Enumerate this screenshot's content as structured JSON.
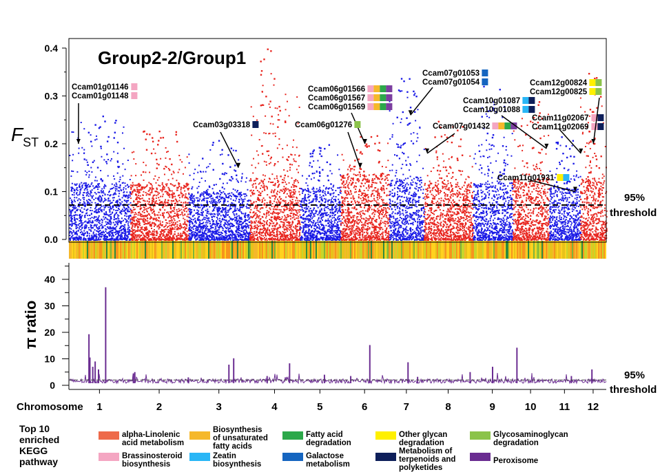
{
  "chart_data": [
    {
      "type": "manhattan",
      "title": "Group2-2/Group1",
      "ylabel": "F",
      "ylabel_sub": "ST",
      "ylim": [
        0,
        0.42
      ],
      "yticks": [
        "0.0",
        "0.1",
        "0.2",
        "0.3",
        "0.4"
      ],
      "ytick_values": [
        0,
        0.1,
        0.2,
        0.3,
        0.4
      ],
      "threshold_value": 0.072,
      "threshold_label_1": "95%",
      "threshold_label_2": "threshold",
      "chromosomes": [
        {
          "name": "1",
          "start": 0,
          "end": 1.28,
          "peak": 0.28,
          "base": 0.12
        },
        {
          "name": "2",
          "start": 1.28,
          "end": 2.5,
          "peak": 0.23,
          "base": 0.12
        },
        {
          "name": "3",
          "start": 2.5,
          "end": 3.78,
          "peak": 0.21,
          "base": 0.1
        },
        {
          "name": "4",
          "start": 3.78,
          "end": 4.83,
          "peak": 0.4,
          "base": 0.13
        },
        {
          "name": "5",
          "start": 4.83,
          "end": 5.68,
          "peak": 0.2,
          "base": 0.11
        },
        {
          "name": "6",
          "start": 5.68,
          "end": 6.7,
          "peak": 0.22,
          "base": 0.14
        },
        {
          "name": "7",
          "start": 6.7,
          "end": 7.43,
          "peak": 0.35,
          "base": 0.13
        },
        {
          "name": "8",
          "start": 7.43,
          "end": 8.45,
          "peak": 0.25,
          "base": 0.12
        },
        {
          "name": "9",
          "start": 8.45,
          "end": 9.28,
          "peak": 0.34,
          "base": 0.12
        },
        {
          "name": "10",
          "start": 9.28,
          "end": 10.05,
          "peak": 0.29,
          "base": 0.13
        },
        {
          "name": "11",
          "start": 10.05,
          "end": 10.7,
          "peak": 0.22,
          "base": 0.11
        },
        {
          "name": "12",
          "start": 10.7,
          "end": 11.25,
          "peak": 0.36,
          "base": 0.13
        }
      ],
      "annotations": [
        {
          "lines": [
            "Ccam01g01146",
            "Ccam01g01148"
          ],
          "colors": [
            [
              "#F4A6C2"
            ],
            [
              "#F4A6C2"
            ]
          ],
          "target": [
            0.2,
            0.2
          ]
        },
        {
          "lines": [
            "Ccam03g03318"
          ],
          "colors": [
            [
              "#0E1F5A"
            ]
          ],
          "target": [
            3.55,
            0.15
          ]
        },
        {
          "lines": [
            "Ccam06g01566",
            "Ccam06g01567",
            "Ccam06g01569"
          ],
          "colors": [
            [
              "#F4A6C2",
              "#F5B82B",
              "#2CA84A",
              "#7C3FA0"
            ],
            [
              "#F4A6C2",
              "#F5B82B",
              "#2CA84A",
              "#7C3FA0"
            ],
            [
              "#F4A6C2",
              "#F5B82B",
              "#2CA84A",
              "#7C3FA0"
            ]
          ],
          "target": [
            6.2,
            0.2
          ]
        },
        {
          "lines": [
            "Ccam06g01276"
          ],
          "colors": [
            [
              "#8BC34A"
            ]
          ],
          "target": [
            6.1,
            0.15
          ]
        },
        {
          "lines": [
            "Ccam07g01053",
            "Ccam07g01054"
          ],
          "colors": [
            [
              "#1565C0"
            ],
            [
              "#1565C0"
            ]
          ],
          "target": [
            7.15,
            0.26
          ]
        },
        {
          "lines": [
            "Ccam07g01432"
          ],
          "colors": [
            [
              "#F4A6C2",
              "#F5B82B",
              "#2CA84A",
              "#7C3FA0"
            ]
          ],
          "target": [
            7.5,
            0.18
          ]
        },
        {
          "lines": [
            "Ccam10g01087",
            "Ccam10g01088"
          ],
          "colors": [
            [
              "#29B6F6",
              "#0E1F5A"
            ],
            [
              "#29B6F6",
              "#0E1F5A"
            ]
          ],
          "target": [
            10.0,
            0.19
          ]
        },
        {
          "lines": [
            "Ccam11g01931"
          ],
          "colors": [
            [
              "#FFF000",
              "#29B6F6"
            ]
          ],
          "target": [
            10.6,
            0.1
          ]
        },
        {
          "lines": [
            "Ccam11g02067",
            "Ccam11g02069"
          ],
          "colors": [
            [
              "#F4A6C2",
              "#0E1F5A"
            ],
            [
              "#F4A6C2",
              "#0E1F5A"
            ]
          ],
          "target": [
            10.72,
            0.18
          ]
        },
        {
          "lines": [
            "Ccam12g00824",
            "Ccam12g00825"
          ],
          "colors": [
            [
              "#FFF000",
              "#8BC34A"
            ],
            [
              "#FFF000",
              "#8BC34A"
            ]
          ],
          "target": [
            10.98,
            0.2
          ]
        }
      ]
    },
    {
      "type": "line",
      "ylabel": "π ratio",
      "ylim": [
        0,
        45
      ],
      "yticks": [
        "0",
        "10",
        "20",
        "30",
        "40"
      ],
      "ytick_values": [
        0,
        10,
        20,
        30,
        40
      ],
      "threshold_value": 2.0,
      "threshold_label_1": "95%",
      "threshold_label_2": "threshold",
      "xlabel": "Chromosome",
      "xticks": [
        "1",
        "2",
        "3",
        "4",
        "5",
        "6",
        "7",
        "8",
        "9",
        "10",
        "11",
        "12"
      ],
      "spikes": [
        {
          "x": 0.42,
          "y": 19.3
        },
        {
          "x": 0.44,
          "y": 10.5
        },
        {
          "x": 0.5,
          "y": 7.0
        },
        {
          "x": 0.55,
          "y": 9.0
        },
        {
          "x": 0.62,
          "y": 6.0
        },
        {
          "x": 0.77,
          "y": 37.0
        },
        {
          "x": 1.35,
          "y": 4.5
        },
        {
          "x": 1.38,
          "y": 5.0
        },
        {
          "x": 3.35,
          "y": 7.8
        },
        {
          "x": 3.45,
          "y": 10.2
        },
        {
          "x": 4.15,
          "y": 3.5
        },
        {
          "x": 4.62,
          "y": 8.3
        },
        {
          "x": 5.35,
          "y": 4.0
        },
        {
          "x": 6.3,
          "y": 15.2
        },
        {
          "x": 7.1,
          "y": 8.7
        },
        {
          "x": 7.3,
          "y": 3.2
        },
        {
          "x": 8.4,
          "y": 5.0
        },
        {
          "x": 8.87,
          "y": 7.0
        },
        {
          "x": 9.38,
          "y": 14.2
        },
        {
          "x": 10.52,
          "y": 3.5
        },
        {
          "x": 10.95,
          "y": 6.0
        },
        {
          "x": 2.5,
          "y": 3.0
        },
        {
          "x": 5.9,
          "y": 3.5
        }
      ],
      "line_color": "#6A2C91"
    }
  ],
  "legend": {
    "title_lines": [
      "Top 10",
      "enriched",
      "KEGG",
      "pathway"
    ],
    "items": [
      {
        "color": "#EE6A4A",
        "lines": [
          "alpha-Linolenic",
          "acid metabolism"
        ]
      },
      {
        "color": "#F4A6C2",
        "lines": [
          "Brassinosteroid",
          "biosynthesis"
        ]
      },
      {
        "color": "#F5B82B",
        "lines": [
          "Biosynthesis",
          "of unsaturated",
          "fatty acids"
        ]
      },
      {
        "color": "#29B6F6",
        "lines": [
          "Zeatin",
          "biosynthesis"
        ]
      },
      {
        "color": "#2CA84A",
        "lines": [
          "Fatty acid",
          "degradation"
        ]
      },
      {
        "color": "#1565C0",
        "lines": [
          "Galactose",
          "metabolism"
        ]
      },
      {
        "color": "#FFF000",
        "lines": [
          "Other glycan",
          "degradation"
        ]
      },
      {
        "color": "#0E1F5A",
        "lines": [
          "Metabolism of",
          "terpenoids and",
          "polyketides"
        ]
      },
      {
        "color": "#8BC34A",
        "lines": [
          "Glycosaminoglycan",
          "degradation"
        ]
      },
      {
        "color": "#6A2C91",
        "lines": [
          "Peroxisome"
        ]
      }
    ]
  },
  "colors": {
    "red": "#E8251E",
    "blue": "#1A1AE6",
    "purple": "#6A2C91"
  }
}
